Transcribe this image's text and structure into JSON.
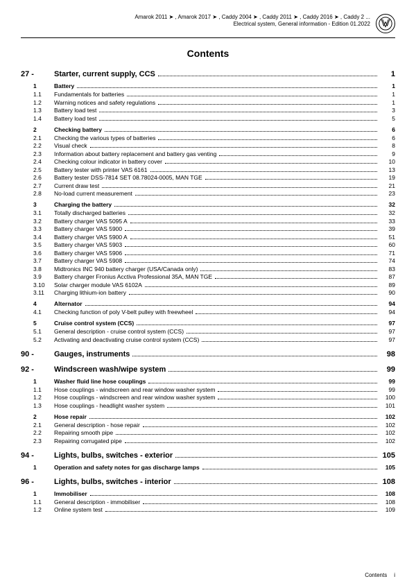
{
  "header": {
    "line1": "Amarok 2011 ➤ , Amarok 2017 ➤ , Caddy 2004 ➤ , Caddy 2011 ➤ , Caddy 2016 ➤ , Caddy 2 ...",
    "line2": "Electrical system, General information - Edition 01.2022"
  },
  "title": "Contents",
  "chapters": [
    {
      "num": "27 -",
      "label": "Starter, current supply, CCS",
      "page": "1",
      "sections": [
        {
          "num": "1",
          "label": "Battery",
          "page": "1",
          "subs": [
            {
              "num": "1.1",
              "label": "Fundamentals for batteries",
              "page": "1"
            },
            {
              "num": "1.2",
              "label": "Warning notices and safety regulations",
              "page": "1"
            },
            {
              "num": "1.3",
              "label": "Battery load test",
              "page": "3"
            },
            {
              "num": "1.4",
              "label": "Battery load test",
              "page": "5"
            }
          ]
        },
        {
          "num": "2",
          "label": "Checking battery",
          "page": "6",
          "subs": [
            {
              "num": "2.1",
              "label": "Checking the various types of batteries",
              "page": "6"
            },
            {
              "num": "2.2",
              "label": "Visual check",
              "page": "8"
            },
            {
              "num": "2.3",
              "label": "Information about battery replacement and battery gas venting",
              "page": "9"
            },
            {
              "num": "2.4",
              "label": "Checking colour indicator in battery cover",
              "page": "10"
            },
            {
              "num": "2.5",
              "label": "Battery tester with printer VAS 6161",
              "page": "13"
            },
            {
              "num": "2.6",
              "label": "Battery tester DSS-7814 SET 08.78024-0005, MAN TGE",
              "page": "19"
            },
            {
              "num": "2.7",
              "label": "Current draw test",
              "page": "21"
            },
            {
              "num": "2.8",
              "label": "No-load current measurement",
              "page": "23"
            }
          ]
        },
        {
          "num": "3",
          "label": "Charging the battery",
          "page": "32",
          "subs": [
            {
              "num": "3.1",
              "label": "Totally discharged batteries",
              "page": "32"
            },
            {
              "num": "3.2",
              "label": "Battery charger VAS 5095 A",
              "page": "33"
            },
            {
              "num": "3.3",
              "label": "Battery charger VAS 5900",
              "page": "39"
            },
            {
              "num": "3.4",
              "label": "Battery charger VAS 5900 A",
              "page": "51"
            },
            {
              "num": "3.5",
              "label": "Battery charger VAS 5903",
              "page": "60"
            },
            {
              "num": "3.6",
              "label": "Battery charger VAS 5906",
              "page": "71"
            },
            {
              "num": "3.7",
              "label": "Battery charger VAS 5908",
              "page": "74"
            },
            {
              "num": "3.8",
              "label": "Midtronics INC 940 battery charger (USA/Canada only)",
              "page": "83"
            },
            {
              "num": "3.9",
              "label": "Battery charger Fronius Acctiva Professional 35A, MAN TGE",
              "page": "87"
            },
            {
              "num": "3.10",
              "label": "Solar charger module VAS 6102A",
              "page": "89"
            },
            {
              "num": "3.11",
              "label": "Charging lithium-ion battery",
              "page": "90"
            }
          ]
        },
        {
          "num": "4",
          "label": "Alternator",
          "page": "94",
          "subs": [
            {
              "num": "4.1",
              "label": "Checking function of poly V-belt pulley with freewheel",
              "page": "94"
            }
          ]
        },
        {
          "num": "5",
          "label": "Cruise control system (CCS)",
          "page": "97",
          "subs": [
            {
              "num": "5.1",
              "label": "General description - cruise control system (CCS)",
              "page": "97"
            },
            {
              "num": "5.2",
              "label": "Activating and deactivating cruise control system (CCS)",
              "page": "97"
            }
          ]
        }
      ]
    },
    {
      "num": "90 -",
      "label": "Gauges, instruments",
      "page": "98",
      "sections": []
    },
    {
      "num": "92 -",
      "label": "Windscreen wash/wipe system",
      "page": "99",
      "sections": [
        {
          "num": "1",
          "label": "Washer fluid line hose couplings",
          "page": "99",
          "subs": [
            {
              "num": "1.1",
              "label": "Hose couplings - windscreen and rear window washer system",
              "page": "99"
            },
            {
              "num": "1.2",
              "label": "Hose couplings - windscreen and rear window washer system",
              "page": "100"
            },
            {
              "num": "1.3",
              "label": "Hose couplings - headlight washer system",
              "page": "101"
            }
          ]
        },
        {
          "num": "2",
          "label": "Hose repair",
          "page": "102",
          "subs": [
            {
              "num": "2.1",
              "label": "General description - hose repair",
              "page": "102"
            },
            {
              "num": "2.2",
              "label": "Repairing smooth pipe",
              "page": "102"
            },
            {
              "num": "2.3",
              "label": "Repairing corrugated pipe",
              "page": "102"
            }
          ]
        }
      ]
    },
    {
      "num": "94 -",
      "label": "Lights, bulbs, switches - exterior",
      "page": "105",
      "sections": [
        {
          "num": "1",
          "label": "Operation and safety notes for gas discharge lamps",
          "page": "105",
          "subs": []
        }
      ]
    },
    {
      "num": "96 -",
      "label": "Lights, bulbs, switches - interior",
      "page": "108",
      "sections": [
        {
          "num": "1",
          "label": "Immobiliser",
          "page": "108",
          "subs": [
            {
              "num": "1.1",
              "label": "General description - immobiliser",
              "page": "108"
            },
            {
              "num": "1.2",
              "label": "Online system test",
              "page": "109"
            }
          ]
        }
      ]
    }
  ],
  "footer": {
    "label": "Contents",
    "page": "i"
  }
}
